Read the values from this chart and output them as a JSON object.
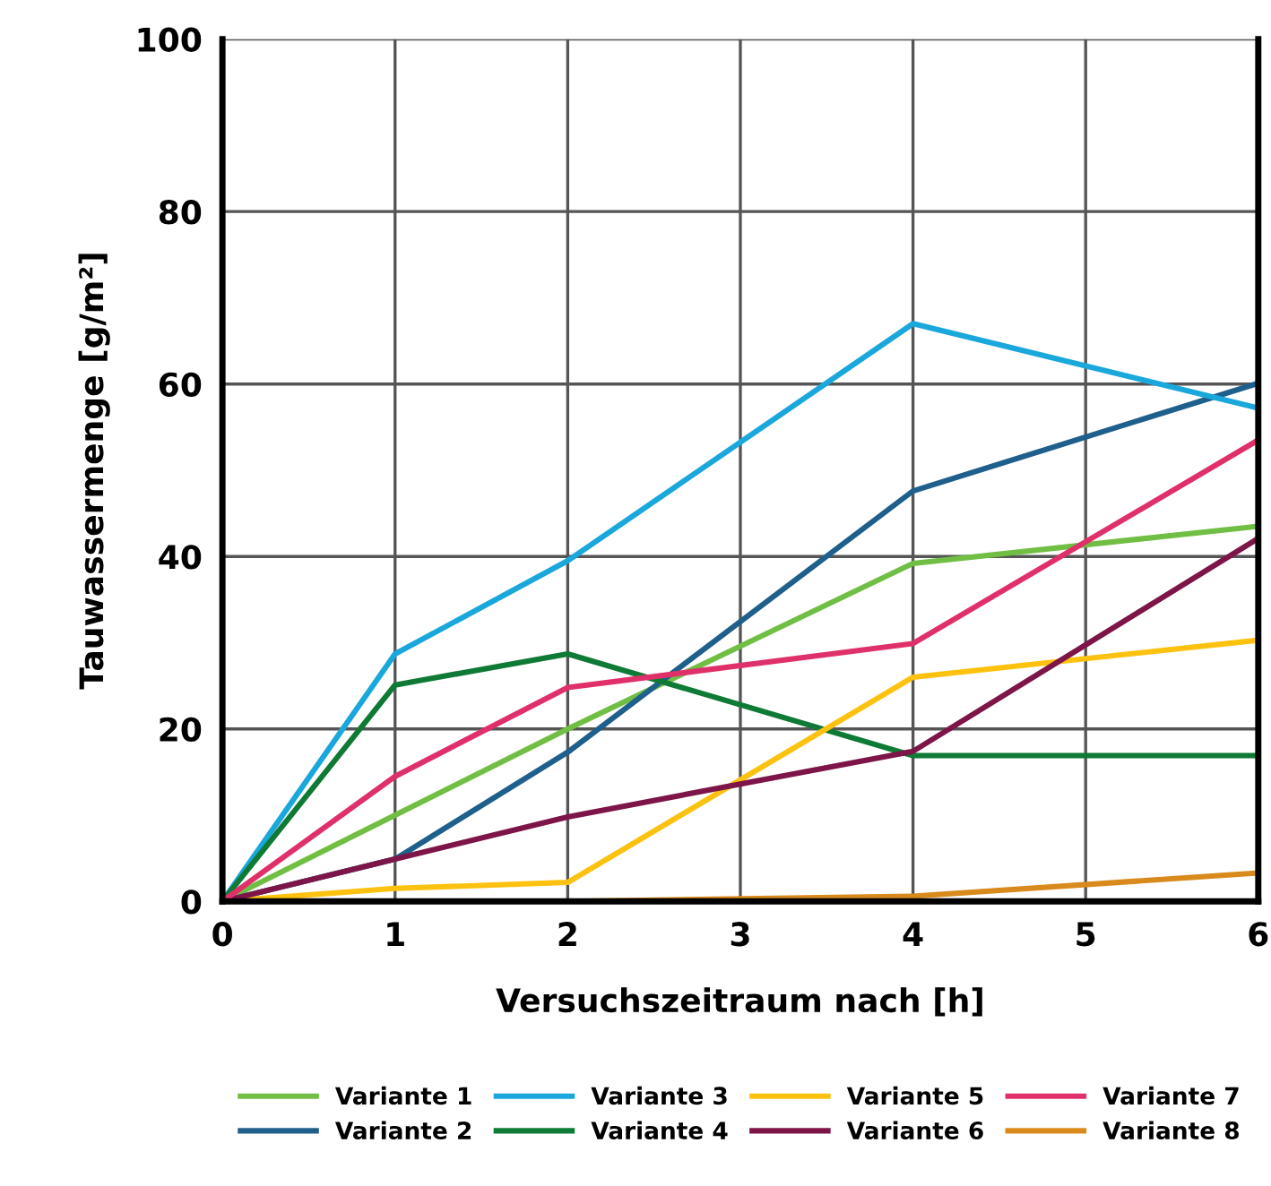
{
  "chart_data": {
    "type": "line",
    "xlabel": "Versuchszeitraum nach [h]",
    "ylabel": "Tauwassermenge [g/m²]",
    "xlim": [
      0,
      6
    ],
    "ylim": [
      0,
      100
    ],
    "xticks": [
      0,
      1,
      2,
      3,
      4,
      5,
      6
    ],
    "yticks": [
      0,
      20,
      40,
      60,
      80,
      100
    ],
    "x": [
      0,
      1,
      2,
      4,
      6
    ],
    "grid": true,
    "legend": "bottom",
    "marker": "none",
    "line_style": "solid",
    "series": [
      {
        "name": "Variante 1",
        "color": "#70bf44",
        "values": [
          0,
          10,
          20,
          39.2,
          43.5
        ]
      },
      {
        "name": "Variante 2",
        "color": "#1f5f8b",
        "values": [
          0,
          4.9,
          17.3,
          47.6,
          60.1
        ]
      },
      {
        "name": "Variante 3",
        "color": "#1aa7dc",
        "values": [
          0,
          28.7,
          39.5,
          67,
          57.2
        ]
      },
      {
        "name": "Variante 4",
        "color": "#0f7a35",
        "values": [
          0,
          25.1,
          28.7,
          16.9,
          16.9
        ]
      },
      {
        "name": "Variante 5",
        "color": "#fdc20f",
        "values": [
          0,
          1.5,
          2.2,
          26,
          30.3
        ]
      },
      {
        "name": "Variante 6",
        "color": "#7d1548",
        "values": [
          0,
          4.9,
          9.8,
          17.4,
          42.1
        ]
      },
      {
        "name": "Variante 7",
        "color": "#e0306a",
        "values": [
          0,
          14.5,
          24.8,
          29.9,
          53.5
        ]
      },
      {
        "name": "Variante 8",
        "color": "#d98a1c",
        "values": [
          0,
          0,
          0,
          0.6,
          3.3
        ]
      }
    ]
  }
}
